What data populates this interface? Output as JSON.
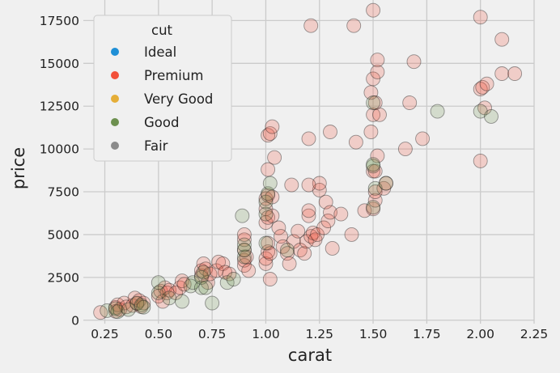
{
  "chart_data": {
    "type": "scatter",
    "xlabel": "carat",
    "ylabel": "price",
    "xlim": [
      0.15,
      2.25
    ],
    "ylim": [
      -200,
      18700
    ],
    "xticks": [
      "0.25",
      "0.50",
      "0.75",
      "1.00",
      "1.25",
      "1.50",
      "1.75",
      "2.00",
      "2.25"
    ],
    "yticks": [
      "0",
      "2500",
      "5000",
      "7500",
      "10000",
      "12500",
      "15000",
      "17500"
    ],
    "grid": true,
    "legend": {
      "title": "cut",
      "placement": "top-left",
      "entries": [
        {
          "name": "Ideal",
          "color": "#1f8fd6"
        },
        {
          "name": "Premium",
          "color": "#f2503a"
        },
        {
          "name": "Very Good",
          "color": "#e5ae38"
        },
        {
          "name": "Good",
          "color": "#6d904f"
        },
        {
          "name": "Fair",
          "color": "#8b8b8b"
        }
      ]
    },
    "series": [
      {
        "name": "Premium",
        "color": "#f2503a",
        "points": [
          [
            0.23,
            450
          ],
          [
            0.3,
            520
          ],
          [
            0.3,
            750
          ],
          [
            0.31,
            900
          ],
          [
            0.32,
            620
          ],
          [
            0.34,
            1000
          ],
          [
            0.35,
            780
          ],
          [
            0.38,
            860
          ],
          [
            0.39,
            1300
          ],
          [
            0.4,
            970
          ],
          [
            0.41,
            1150
          ],
          [
            0.42,
            790
          ],
          [
            0.43,
            1000
          ],
          [
            0.5,
            1400
          ],
          [
            0.51,
            1700
          ],
          [
            0.52,
            1100
          ],
          [
            0.53,
            1900
          ],
          [
            0.54,
            1600
          ],
          [
            0.55,
            1750
          ],
          [
            0.58,
            1600
          ],
          [
            0.6,
            1900
          ],
          [
            0.61,
            2300
          ],
          [
            0.62,
            2100
          ],
          [
            0.7,
            2600
          ],
          [
            0.7,
            2900
          ],
          [
            0.71,
            3300
          ],
          [
            0.72,
            3000
          ],
          [
            0.73,
            2200
          ],
          [
            0.74,
            2700
          ],
          [
            0.77,
            2900
          ],
          [
            0.78,
            3400
          ],
          [
            0.8,
            3300
          ],
          [
            0.81,
            2800
          ],
          [
            0.83,
            2700
          ],
          [
            0.9,
            3200
          ],
          [
            0.9,
            3500
          ],
          [
            0.9,
            4100
          ],
          [
            0.91,
            3700
          ],
          [
            0.9,
            4700
          ],
          [
            0.9,
            5000
          ],
          [
            0.92,
            2900
          ],
          [
            1.0,
            3300
          ],
          [
            1.0,
            3600
          ],
          [
            1.01,
            4000
          ],
          [
            1.01,
            4500
          ],
          [
            1.02,
            3900
          ],
          [
            1.02,
            2400
          ],
          [
            1.0,
            5700
          ],
          [
            1.0,
            6500
          ],
          [
            1.01,
            6000
          ],
          [
            1.03,
            6100
          ],
          [
            1.0,
            7100
          ],
          [
            1.01,
            7300
          ],
          [
            1.03,
            7200
          ],
          [
            1.01,
            8800
          ],
          [
            1.04,
            9500
          ],
          [
            1.01,
            10800
          ],
          [
            1.02,
            10900
          ],
          [
            1.03,
            11300
          ],
          [
            1.06,
            5400
          ],
          [
            1.07,
            4900
          ],
          [
            1.08,
            4300
          ],
          [
            1.1,
            3900
          ],
          [
            1.11,
            3300
          ],
          [
            1.12,
            7900
          ],
          [
            1.13,
            4600
          ],
          [
            1.15,
            5200
          ],
          [
            1.16,
            4100
          ],
          [
            1.18,
            3900
          ],
          [
            1.19,
            4600
          ],
          [
            1.2,
            6100
          ],
          [
            1.2,
            6400
          ],
          [
            1.21,
            4900
          ],
          [
            1.22,
            5100
          ],
          [
            1.23,
            4700
          ],
          [
            1.24,
            5000
          ],
          [
            1.25,
            7600
          ],
          [
            1.25,
            8000
          ],
          [
            1.27,
            5400
          ],
          [
            1.28,
            6900
          ],
          [
            1.29,
            5800
          ],
          [
            1.3,
            6300
          ],
          [
            1.2,
            7900
          ],
          [
            1.2,
            10600
          ],
          [
            1.21,
            17200
          ],
          [
            1.31,
            4200
          ],
          [
            1.3,
            11000
          ],
          [
            1.35,
            6200
          ],
          [
            1.4,
            5000
          ],
          [
            1.41,
            17200
          ],
          [
            1.42,
            10400
          ],
          [
            1.46,
            6400
          ],
          [
            1.5,
            6500
          ],
          [
            1.51,
            7000
          ],
          [
            1.51,
            7500
          ],
          [
            1.5,
            8700
          ],
          [
            1.51,
            8700
          ],
          [
            1.52,
            9600
          ],
          [
            1.49,
            11000
          ],
          [
            1.5,
            12000
          ],
          [
            1.49,
            13300
          ],
          [
            1.5,
            14100
          ],
          [
            1.52,
            14500
          ],
          [
            1.52,
            15200
          ],
          [
            1.53,
            12000
          ],
          [
            1.51,
            12700
          ],
          [
            1.5,
            18100
          ],
          [
            1.55,
            7700
          ],
          [
            1.56,
            8000
          ],
          [
            1.65,
            10000
          ],
          [
            1.67,
            12700
          ],
          [
            1.69,
            15100
          ],
          [
            1.73,
            10600
          ],
          [
            2.0,
            9300
          ],
          [
            2.0,
            13500
          ],
          [
            2.01,
            13600
          ],
          [
            2.02,
            12400
          ],
          [
            2.03,
            13800
          ],
          [
            2.0,
            17700
          ],
          [
            2.1,
            16400
          ],
          [
            2.1,
            14400
          ],
          [
            2.16,
            14400
          ]
        ]
      },
      {
        "name": "Good",
        "color": "#6d904f",
        "points": [
          [
            0.26,
            560
          ],
          [
            0.3,
            680
          ],
          [
            0.31,
            500
          ],
          [
            0.36,
            620
          ],
          [
            0.4,
            1000
          ],
          [
            0.42,
            880
          ],
          [
            0.43,
            760
          ],
          [
            0.5,
            2200
          ],
          [
            0.5,
            1600
          ],
          [
            0.55,
            1300
          ],
          [
            0.61,
            1100
          ],
          [
            0.65,
            2000
          ],
          [
            0.66,
            2200
          ],
          [
            0.7,
            1900
          ],
          [
            0.7,
            2500
          ],
          [
            0.71,
            2800
          ],
          [
            0.72,
            1900
          ],
          [
            0.75,
            1000
          ],
          [
            0.82,
            2200
          ],
          [
            0.85,
            2400
          ],
          [
            0.89,
            6100
          ],
          [
            0.9,
            3700
          ],
          [
            0.9,
            4100
          ],
          [
            0.9,
            4400
          ],
          [
            1.0,
            6200
          ],
          [
            1.0,
            6900
          ],
          [
            1.01,
            7400
          ],
          [
            1.02,
            8000
          ],
          [
            1.0,
            4500
          ],
          [
            1.1,
            4100
          ],
          [
            1.5,
            6600
          ],
          [
            1.51,
            7700
          ],
          [
            1.5,
            9000
          ],
          [
            1.5,
            9100
          ],
          [
            1.5,
            12700
          ],
          [
            1.56,
            8000
          ],
          [
            1.8,
            12200
          ],
          [
            2.0,
            12200
          ],
          [
            2.05,
            11900
          ]
        ]
      }
    ]
  }
}
